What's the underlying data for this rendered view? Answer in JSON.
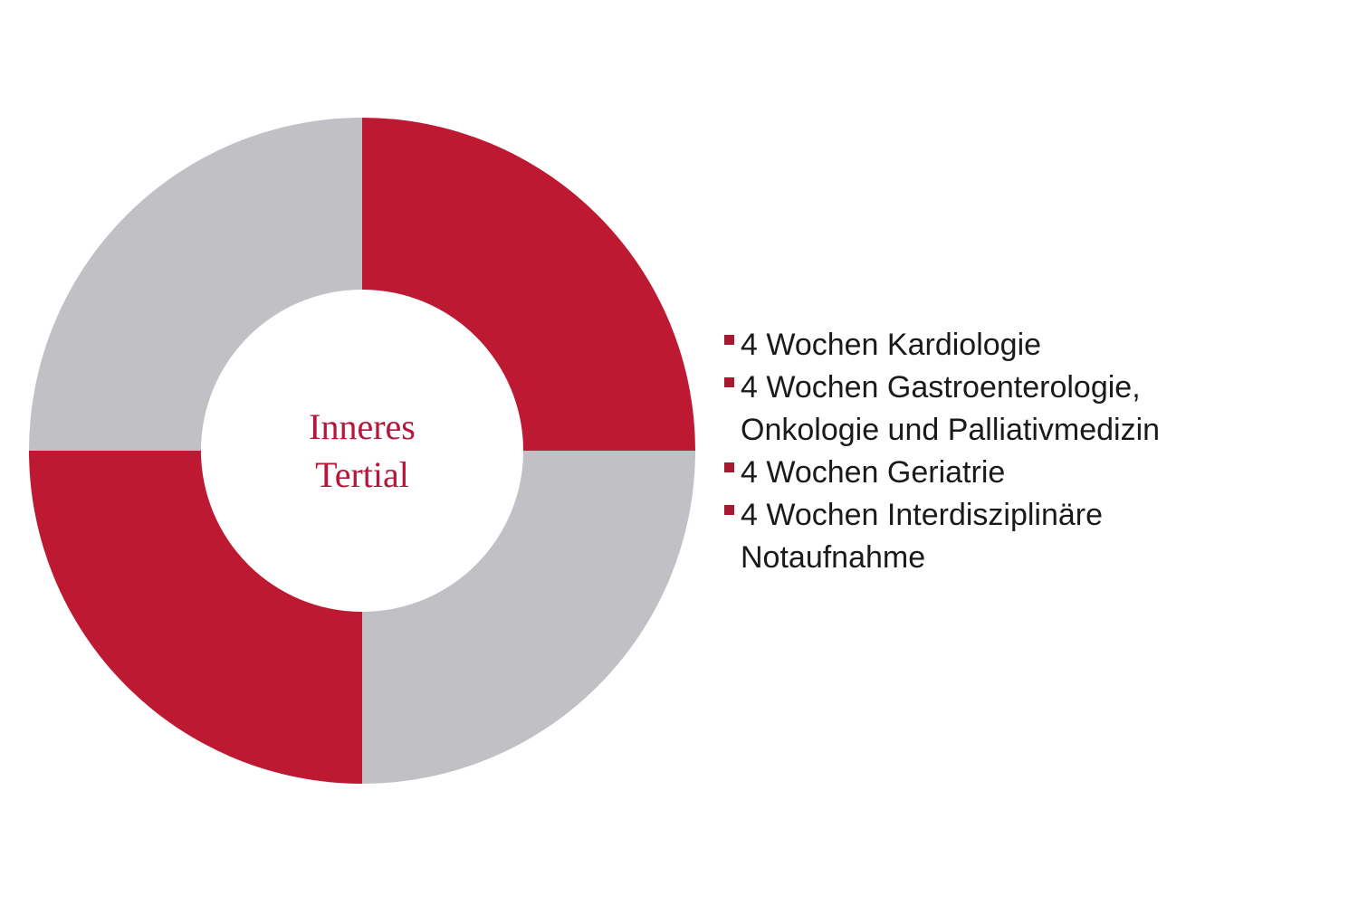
{
  "page": {
    "background": "#FFFFFF"
  },
  "chart_data": {
    "type": "pie",
    "subtype": "donut",
    "title": "Inneres Tertial",
    "center_label": {
      "line1": "Inneres",
      "line2": "Tertial"
    },
    "start_angle_deg": 0,
    "inner_radius_ratio": 0.484,
    "legend_position": "right",
    "segments": [
      {
        "label": "4 Wochen Kardiologie",
        "value": 25,
        "color": "#BE1932"
      },
      {
        "label": "4 Wochen Gastroenterologie, Onkologie und Palliativmedizin",
        "value": 25,
        "color": "#C1C1C5"
      },
      {
        "label": "4 Wochen Geriatrie",
        "value": 25,
        "color": "#BE1932"
      },
      {
        "label": "4 Wochen Interdisziplinäre Notaufnahme",
        "value": 25,
        "color": "#C1C1C5"
      }
    ],
    "colors": {
      "accent_red": "#BE1932",
      "neutral_gray": "#C1C1C5",
      "center_text": "#B5173A",
      "legend_bullet": "#A6192E",
      "legend_text": "#1A1A1A"
    }
  }
}
